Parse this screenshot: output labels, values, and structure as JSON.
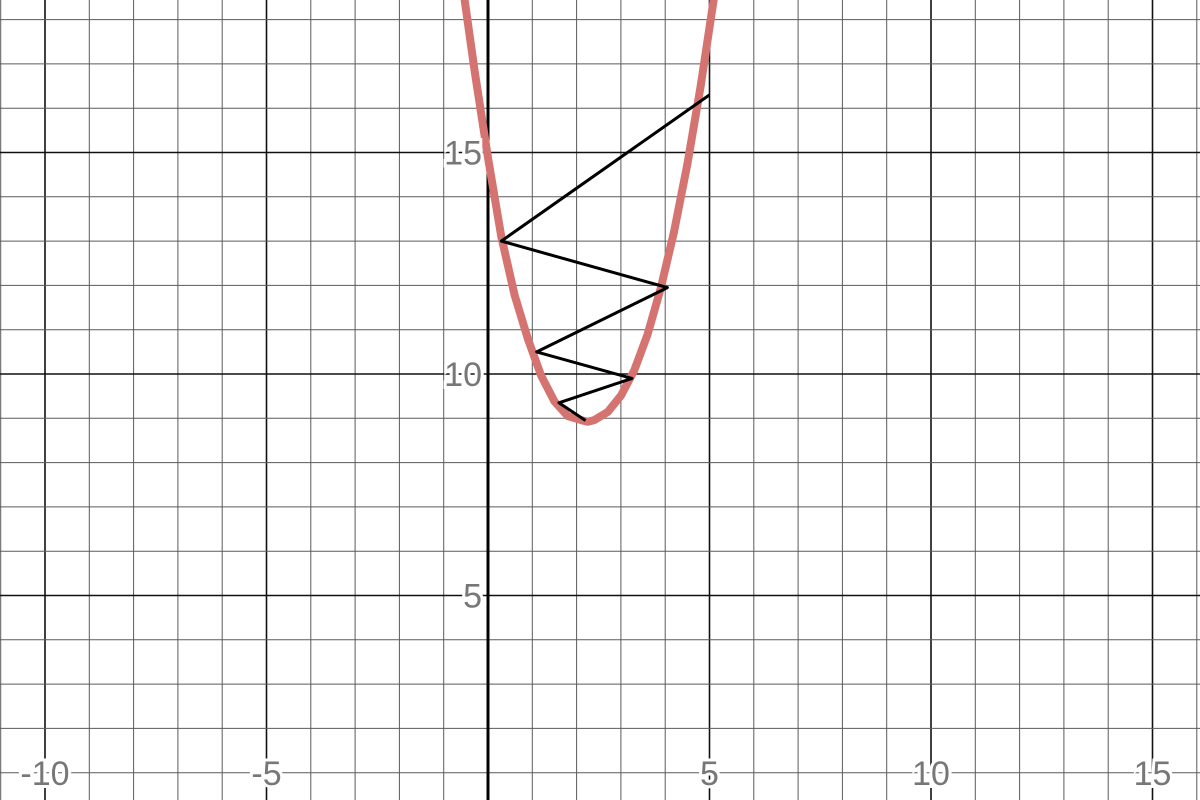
{
  "chart_data": {
    "type": "line",
    "xlim": [
      -11,
      16
    ],
    "ylim": [
      0,
      18
    ],
    "grid": true,
    "grid_minor_step": 1,
    "grid_major_step": 5,
    "x_tick_labels": [
      {
        "value": -10,
        "label": "-10"
      },
      {
        "value": -5,
        "label": "-5"
      },
      {
        "value": 5,
        "label": "5"
      },
      {
        "value": 10,
        "label": "10"
      },
      {
        "value": 15,
        "label": "15"
      }
    ],
    "y_tick_labels": [
      {
        "value": 5,
        "label": "5"
      },
      {
        "value": 10,
        "label": "10"
      },
      {
        "value": 15,
        "label": "15"
      }
    ],
    "series": [
      {
        "kind": "curve",
        "color": "#d4736f",
        "x": [
          -0.9,
          -0.6,
          -0.3,
          0.0,
          0.3,
          0.6,
          0.9,
          1.2,
          1.5,
          1.8,
          2.1,
          2.25,
          2.4,
          2.7,
          3.0,
          3.3,
          3.6,
          3.9,
          4.2,
          4.5,
          4.8,
          5.1,
          5.4
        ],
        "y": [
          21.25,
          18.96,
          16.83,
          14.88,
          13.1,
          11.78,
          10.79,
          9.96,
          9.38,
          9.05,
          8.96,
          8.92,
          8.96,
          9.14,
          9.51,
          10.08,
          10.89,
          11.94,
          13.22,
          14.74,
          16.49,
          18.48,
          20.71
        ]
      },
      {
        "kind": "polyline",
        "color": "#000000",
        "x": [
          5.0,
          0.3,
          4.05,
          1.1,
          3.25,
          1.6,
          2.2
        ],
        "y": [
          16.3,
          13.0,
          11.95,
          10.5,
          9.9,
          9.35,
          8.95
        ]
      }
    ]
  }
}
